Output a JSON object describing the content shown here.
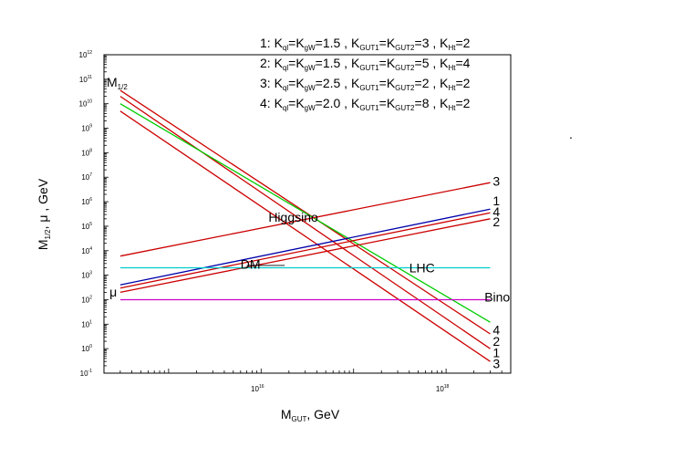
{
  "chart_data": {
    "type": "line",
    "xlabel": {
      "base": "M",
      "sub": "GUT",
      "rest": ",  GeV"
    },
    "ylabel": {
      "p1": "M",
      "s1": "1/2",
      "p2": ",  μ ,  GeV"
    },
    "x_scale": "log",
    "y_scale": "log",
    "xlim": [
      200000000000000.0,
      5e+18
    ],
    "ylim": [
      0.1,
      1000000000000.0
    ],
    "x_ticks": [
      {
        "value": 1e+16,
        "base": "10",
        "exp": "16"
      },
      {
        "value": 1e+18,
        "base": "10",
        "exp": "18"
      }
    ],
    "y_ticks": [
      {
        "value": 0.1,
        "base": "10",
        "exp": "-1"
      },
      {
        "value": 1,
        "base": "10",
        "exp": "0"
      },
      {
        "value": 10,
        "base": "10",
        "exp": "1"
      },
      {
        "value": 100,
        "base": "10",
        "exp": "2"
      },
      {
        "value": 1000,
        "base": "10",
        "exp": "3"
      },
      {
        "value": 10000,
        "base": "10",
        "exp": "4"
      },
      {
        "value": 100000,
        "base": "10",
        "exp": "5"
      },
      {
        "value": 1000000,
        "base": "10",
        "exp": "6"
      },
      {
        "value": 10000000,
        "base": "10",
        "exp": "7"
      },
      {
        "value": 100000000,
        "base": "10",
        "exp": "8"
      },
      {
        "value": 1000000000,
        "base": "10",
        "exp": "9"
      },
      {
        "value": 10000000000,
        "base": "10",
        "exp": "10"
      },
      {
        "value": 100000000000,
        "base": "10",
        "exp": "11"
      },
      {
        "value": 1000000000000,
        "base": "10",
        "exp": "12"
      }
    ],
    "legend": [
      {
        "id": "1",
        "kql": "1.5",
        "kgut": "3",
        "kht": "2"
      },
      {
        "id": "2",
        "kql": "1.5",
        "kgut": "5",
        "kht": "4"
      },
      {
        "id": "3",
        "kql": "2.5",
        "kgut": "2",
        "kht": "2"
      },
      {
        "id": "4",
        "kql": "2.0",
        "kgut": "8",
        "kht": "2"
      }
    ],
    "legend_placement": "top-right",
    "series": [
      {
        "group": "M1/2",
        "label": "1",
        "color": "#cc0000",
        "x": [
          300000000000000.0,
          3e+18
        ],
        "y": [
          20000000000.0,
          1.0
        ]
      },
      {
        "group": "M1/2",
        "label": "2",
        "color": "#cc0000",
        "x": [
          300000000000000.0,
          3e+18
        ],
        "y": [
          35000000000.0,
          4.0
        ]
      },
      {
        "group": "M1/2",
        "label": "3",
        "color": "#cc0000",
        "x": [
          300000000000000.0,
          3e+18
        ],
        "y": [
          5000000000.0,
          0.3
        ]
      },
      {
        "group": "M1/2",
        "label": "4",
        "color": "#00cc00",
        "x": [
          300000000000000.0,
          3e+18
        ],
        "y": [
          10000000000.0,
          12
        ]
      },
      {
        "group": "mu",
        "label": "1",
        "color": "#0000aa",
        "x": [
          300000000000000.0,
          3e+18
        ],
        "y": [
          400,
          500000
        ]
      },
      {
        "group": "mu",
        "label": "4",
        "color": "#cc0000",
        "x": [
          300000000000000.0,
          3e+18
        ],
        "y": [
          300,
          350000
        ]
      },
      {
        "group": "mu",
        "label": "2",
        "color": "#cc0000",
        "x": [
          300000000000000.0,
          3e+18
        ],
        "y": [
          200,
          200000
        ]
      },
      {
        "group": "mu",
        "label": "3",
        "color": "#cc0000",
        "x": [
          300000000000000.0,
          3e+18
        ],
        "y": [
          6000,
          6000000
        ]
      },
      {
        "group": "LHC",
        "label": "",
        "color": "#00cccc",
        "x": [
          300000000000000.0,
          3e+18
        ],
        "y": [
          2000,
          2000
        ]
      },
      {
        "group": "low",
        "label": "",
        "color": "#cc00cc",
        "x": [
          300000000000000.0,
          3e+18
        ],
        "y": [
          100,
          100
        ]
      }
    ],
    "end_labels": [
      {
        "text": "3",
        "x": 3.2e+18,
        "y": 7000000.0
      },
      {
        "text": "1",
        "x": 3.2e+18,
        "y": 1100000.0
      },
      {
        "text": "4",
        "x": 3.2e+18,
        "y": 400000.0
      },
      {
        "text": "2",
        "x": 3.2e+18,
        "y": 150000.0
      },
      {
        "text": "4",
        "x": 3.2e+18,
        "y": 6.0
      },
      {
        "text": "2",
        "x": 3.2e+18,
        "y": 2.0
      },
      {
        "text": "1",
        "x": 3.2e+18,
        "y": 0.7
      },
      {
        "text": "3",
        "x": 3.2e+18,
        "y": 0.25
      }
    ],
    "annotations": [
      {
        "text": "Higgsino",
        "x": 1.2e+16,
        "y": 230000.0
      },
      {
        "text": "DM",
        "x": 6000000000000000.0,
        "y": 2800
      },
      {
        "text": "LHC",
        "x": 4e+17,
        "y": 2000
      },
      {
        "text": "Bino",
        "x": 2.6e+18,
        "y": 130
      },
      {
        "text": "μ",
        "x": 230000000000000.0,
        "y": 210
      }
    ],
    "mhalf_label": {
      "base": "M",
      "sub": "1/2"
    },
    "dm_connector": {
      "x": [
        7000000000000000.0,
        1.8e+16
      ],
      "y": [
        2500,
        2500
      ]
    },
    "stray_dot": "."
  }
}
